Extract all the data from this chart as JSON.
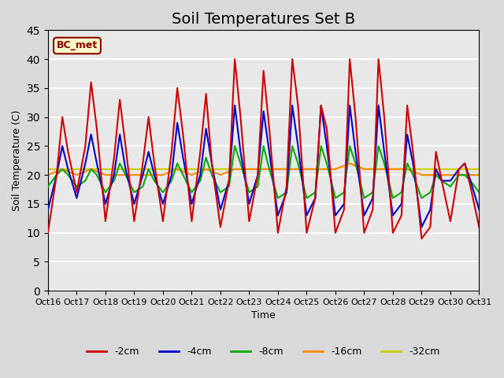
{
  "title": "Soil Temperatures Set B",
  "xlabel": "Time",
  "ylabel": "Soil Temperature (C)",
  "annotation": "BC_met",
  "ylim": [
    0,
    45
  ],
  "yticks": [
    0,
    5,
    10,
    15,
    20,
    25,
    30,
    35,
    40,
    45
  ],
  "xtick_labels": [
    "Oct 16",
    "Oct 17",
    "Oct 18",
    "Oct 19",
    "Oct 20",
    "Oct 21",
    "Oct 22",
    "Oct 23",
    "Oct 24",
    "Oct 25",
    "Oct 26",
    "Oct 27",
    "Oct 28",
    "Oct 29",
    "Oct 30",
    "Oct 31"
  ],
  "series_colors": [
    "#cc0000",
    "#0000cc",
    "#00aa00",
    "#ff8800",
    "#cccc00"
  ],
  "series_labels": [
    "-2cm",
    "-4cm",
    "-8cm",
    "-16cm",
    "-32cm"
  ],
  "background_color": "#e8e8e8",
  "plot_bg_color": "#e8e8e8",
  "grid_color": "#ffffff",
  "title_fontsize": 14,
  "n_points": 16,
  "x_2cm": [
    0,
    0.3,
    0.5,
    0.7,
    1,
    1.3,
    1.5,
    1.7,
    2,
    2.3,
    2.5,
    2.7,
    3,
    3.3,
    3.5,
    3.7,
    4,
    4.3,
    4.5,
    4.7,
    5,
    5.3,
    5.5,
    5.7,
    6,
    6.3,
    6.5,
    6.7,
    7,
    7.3,
    7.5,
    7.7,
    8,
    8.3,
    8.5,
    8.7,
    9,
    9.3,
    9.5,
    9.7,
    10,
    10.3,
    10.5,
    10.7,
    11,
    11.3,
    11.5,
    11.7,
    12,
    12.3,
    12.5,
    12.7,
    13,
    13.3,
    13.5,
    13.7,
    14,
    14.3,
    14.5,
    14.7,
    15
  ],
  "y_2cm": [
    10,
    20,
    30,
    24,
    17,
    25,
    36,
    28,
    12,
    23,
    33,
    25,
    12,
    22,
    30,
    22,
    12,
    24,
    35,
    27,
    12,
    24,
    34,
    22,
    11,
    19,
    40,
    30,
    12,
    20,
    38,
    28,
    10,
    18,
    40,
    32,
    10,
    16,
    32,
    28,
    10,
    14,
    40,
    30,
    10,
    14,
    40,
    30,
    10,
    13,
    32,
    24,
    9,
    11,
    24,
    19,
    12,
    21,
    22,
    18,
    11
  ],
  "x_4cm": [
    0,
    0.3,
    0.5,
    0.7,
    1,
    1.3,
    1.5,
    1.7,
    2,
    2.3,
    2.5,
    2.7,
    3,
    3.3,
    3.5,
    3.7,
    4,
    4.3,
    4.5,
    4.7,
    5,
    5.3,
    5.5,
    5.7,
    6,
    6.3,
    6.5,
    6.7,
    7,
    7.3,
    7.5,
    7.7,
    8,
    8.3,
    8.5,
    8.7,
    9,
    9.3,
    9.5,
    9.7,
    10,
    10.3,
    10.5,
    10.7,
    11,
    11.3,
    11.5,
    11.7,
    12,
    12.3,
    12.5,
    12.7,
    13,
    13.3,
    13.5,
    13.7,
    14,
    14.3,
    14.5,
    14.7,
    15
  ],
  "y_4cm": [
    14,
    20,
    25,
    21,
    16,
    22,
    27,
    22,
    15,
    20,
    27,
    21,
    15,
    20,
    24,
    20,
    15,
    20,
    29,
    23,
    15,
    20,
    28,
    22,
    14,
    19,
    32,
    24,
    15,
    20,
    31,
    24,
    13,
    17,
    32,
    25,
    13,
    16,
    32,
    25,
    13,
    15,
    32,
    24,
    13,
    16,
    32,
    24,
    13,
    15,
    27,
    22,
    11,
    14,
    21,
    19,
    19,
    21,
    22,
    19,
    14
  ],
  "x_8cm": [
    0,
    0.3,
    0.5,
    0.7,
    1,
    1.3,
    1.5,
    1.7,
    2,
    2.3,
    2.5,
    2.7,
    3,
    3.3,
    3.5,
    3.7,
    4,
    4.3,
    4.5,
    4.7,
    5,
    5.3,
    5.5,
    5.7,
    6,
    6.3,
    6.5,
    6.7,
    7,
    7.3,
    7.5,
    7.7,
    8,
    8.3,
    8.5,
    8.7,
    9,
    9.3,
    9.5,
    9.7,
    10,
    10.3,
    10.5,
    10.7,
    11,
    11.3,
    11.5,
    11.7,
    12,
    12.3,
    12.5,
    12.7,
    13,
    13.3,
    13.5,
    13.7,
    14,
    14.3,
    14.5,
    14.7,
    15
  ],
  "y_8cm": [
    18,
    20,
    21,
    20,
    18,
    19,
    21,
    20,
    17,
    19,
    22,
    20,
    17,
    18,
    21,
    19,
    17,
    19,
    22,
    20,
    17,
    19,
    23,
    20,
    17,
    18,
    25,
    22,
    17,
    18,
    25,
    21,
    16,
    17,
    25,
    22,
    16,
    17,
    25,
    22,
    16,
    17,
    25,
    22,
    16,
    17,
    25,
    22,
    16,
    17,
    22,
    20,
    16,
    17,
    20,
    19,
    18,
    20,
    20,
    19,
    17
  ],
  "x_16cm": [
    0,
    0.5,
    1,
    1.5,
    2,
    2.5,
    3,
    3.5,
    4,
    4.5,
    5,
    5.5,
    6,
    6.5,
    7,
    7.5,
    8,
    8.5,
    9,
    9.5,
    10,
    10.5,
    11,
    11.5,
    12,
    12.5,
    13,
    13.5,
    14,
    14.5,
    15
  ],
  "y_16cm": [
    20,
    21,
    20,
    21,
    20,
    20,
    20,
    20,
    20,
    21,
    20,
    21,
    20,
    21,
    21,
    21,
    21,
    21,
    21,
    21,
    21,
    22,
    21,
    21,
    21,
    21,
    20,
    20,
    20,
    20,
    20
  ],
  "x_32cm": [
    0,
    0.5,
    1,
    1.5,
    2,
    2.5,
    3,
    3.5,
    4,
    4.5,
    5,
    5.5,
    6,
    6.5,
    7,
    7.5,
    8,
    8.5,
    9,
    9.5,
    10,
    10.5,
    11,
    11.5,
    12,
    12.5,
    13,
    13.5,
    14,
    14.5,
    15
  ],
  "y_32cm": [
    21,
    21,
    21,
    21,
    21,
    21,
    21,
    21,
    21,
    21,
    21,
    21,
    21,
    21,
    21,
    21,
    21,
    21,
    21,
    21,
    21,
    22,
    21,
    21,
    21,
    21,
    21,
    21,
    21,
    21,
    21
  ]
}
